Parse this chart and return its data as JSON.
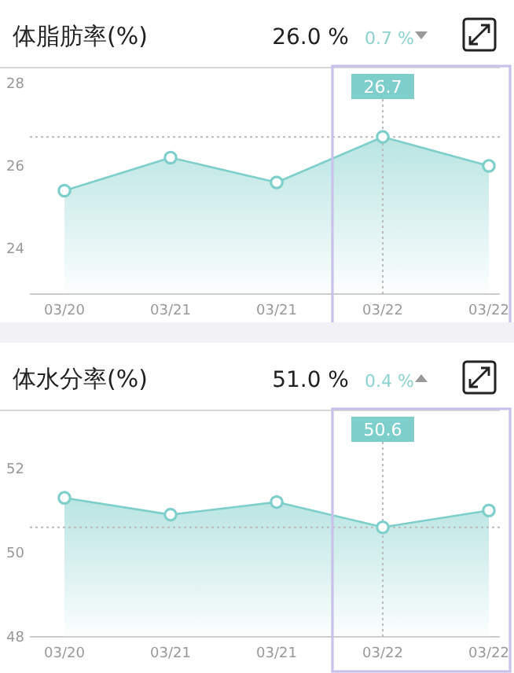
{
  "chart_data": [
    {
      "type": "area",
      "title": "体脂肪率(%)",
      "annotations": [
        "26.0 %",
        "0.7 %",
        "26.7"
      ],
      "categories": [
        "03/20",
        "03/21",
        "03/21",
        "03/22",
        "03/22"
      ],
      "values": [
        25.4,
        26.2,
        25.6,
        26.7,
        26.0
      ],
      "color": "#7ecfcb",
      "marker": "circle",
      "ylim": [
        22.9,
        28.3
      ],
      "yticks": [
        24,
        26,
        28
      ],
      "ref_lines": [
        {
          "axis": "x",
          "value": "03/22",
          "line_style": "dotted",
          "color": "#bbbbbb"
        },
        {
          "axis": "y",
          "value": 26.7,
          "line_style": "dotted",
          "color": "#bbbbbb"
        }
      ]
    },
    {
      "type": "area",
      "title": "体水分率(%)",
      "annotations": [
        "51.0 %",
        "0.4 %",
        "50.6"
      ],
      "categories": [
        "03/20",
        "03/21",
        "03/21",
        "03/22",
        "03/22"
      ],
      "values": [
        51.3,
        50.9,
        51.2,
        50.6,
        51.0
      ],
      "color": "#7ecfcb",
      "marker": "circle",
      "ylim": [
        48,
        53.3
      ],
      "yticks": [
        48,
        50,
        52
      ],
      "ref_lines": [
        {
          "axis": "x",
          "value": "03/22",
          "line_style": "dotted",
          "color": "#bbbbbb"
        },
        {
          "axis": "y",
          "value": 50.6,
          "line_style": "dotted",
          "color": "#bbbbbb"
        }
      ]
    }
  ]
}
